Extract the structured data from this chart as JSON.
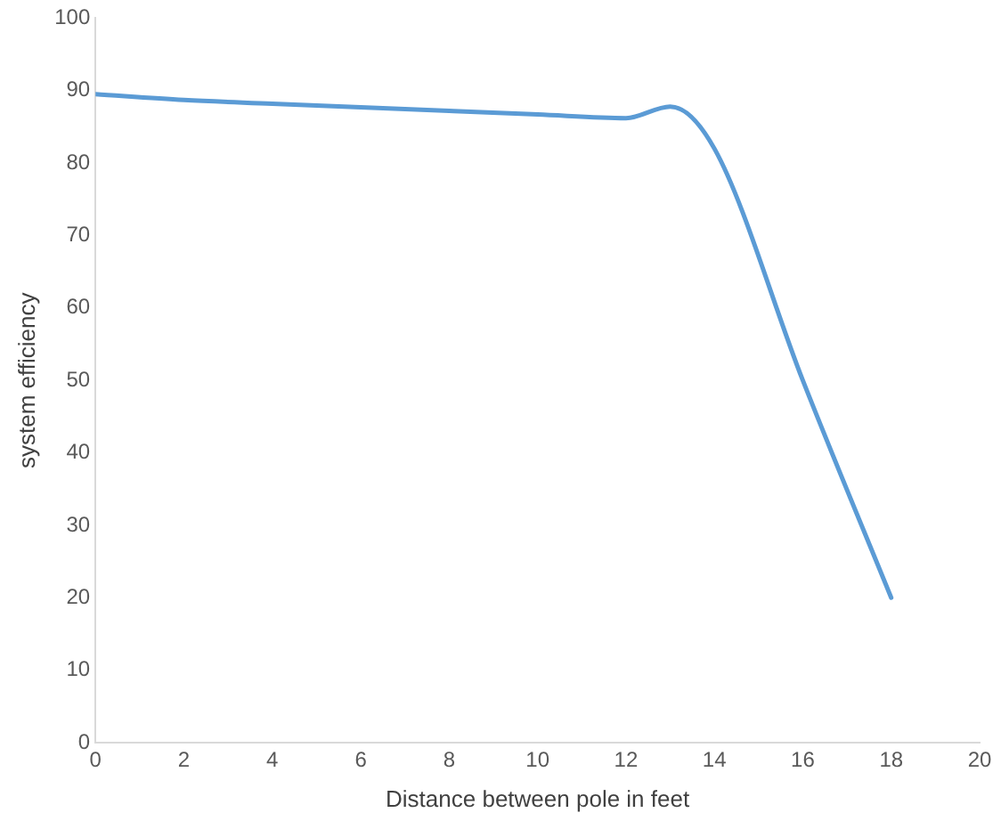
{
  "chart_data": {
    "type": "line",
    "xlabel": "Distance between pole in feet",
    "ylabel": "system efficiency",
    "x": [
      0,
      2,
      4,
      6,
      8,
      10,
      12,
      13,
      14,
      16,
      18
    ],
    "series": [
      {
        "color": "#5b9bd5",
        "values": [
          89.5,
          88.7,
          88.2,
          87.7,
          87.2,
          86.7,
          86.2,
          87.8,
          82,
          50,
          20
        ]
      }
    ],
    "xlim": [
      0,
      20
    ],
    "xticks": [
      0,
      2,
      4,
      6,
      8,
      10,
      12,
      14,
      16,
      18,
      20
    ],
    "ylim": [
      0,
      100
    ],
    "yticks": [
      0,
      10,
      20,
      30,
      40,
      50,
      60,
      70,
      80,
      90,
      100
    ],
    "grid": false,
    "legend": false,
    "marker": "none",
    "line_style": "solid"
  }
}
